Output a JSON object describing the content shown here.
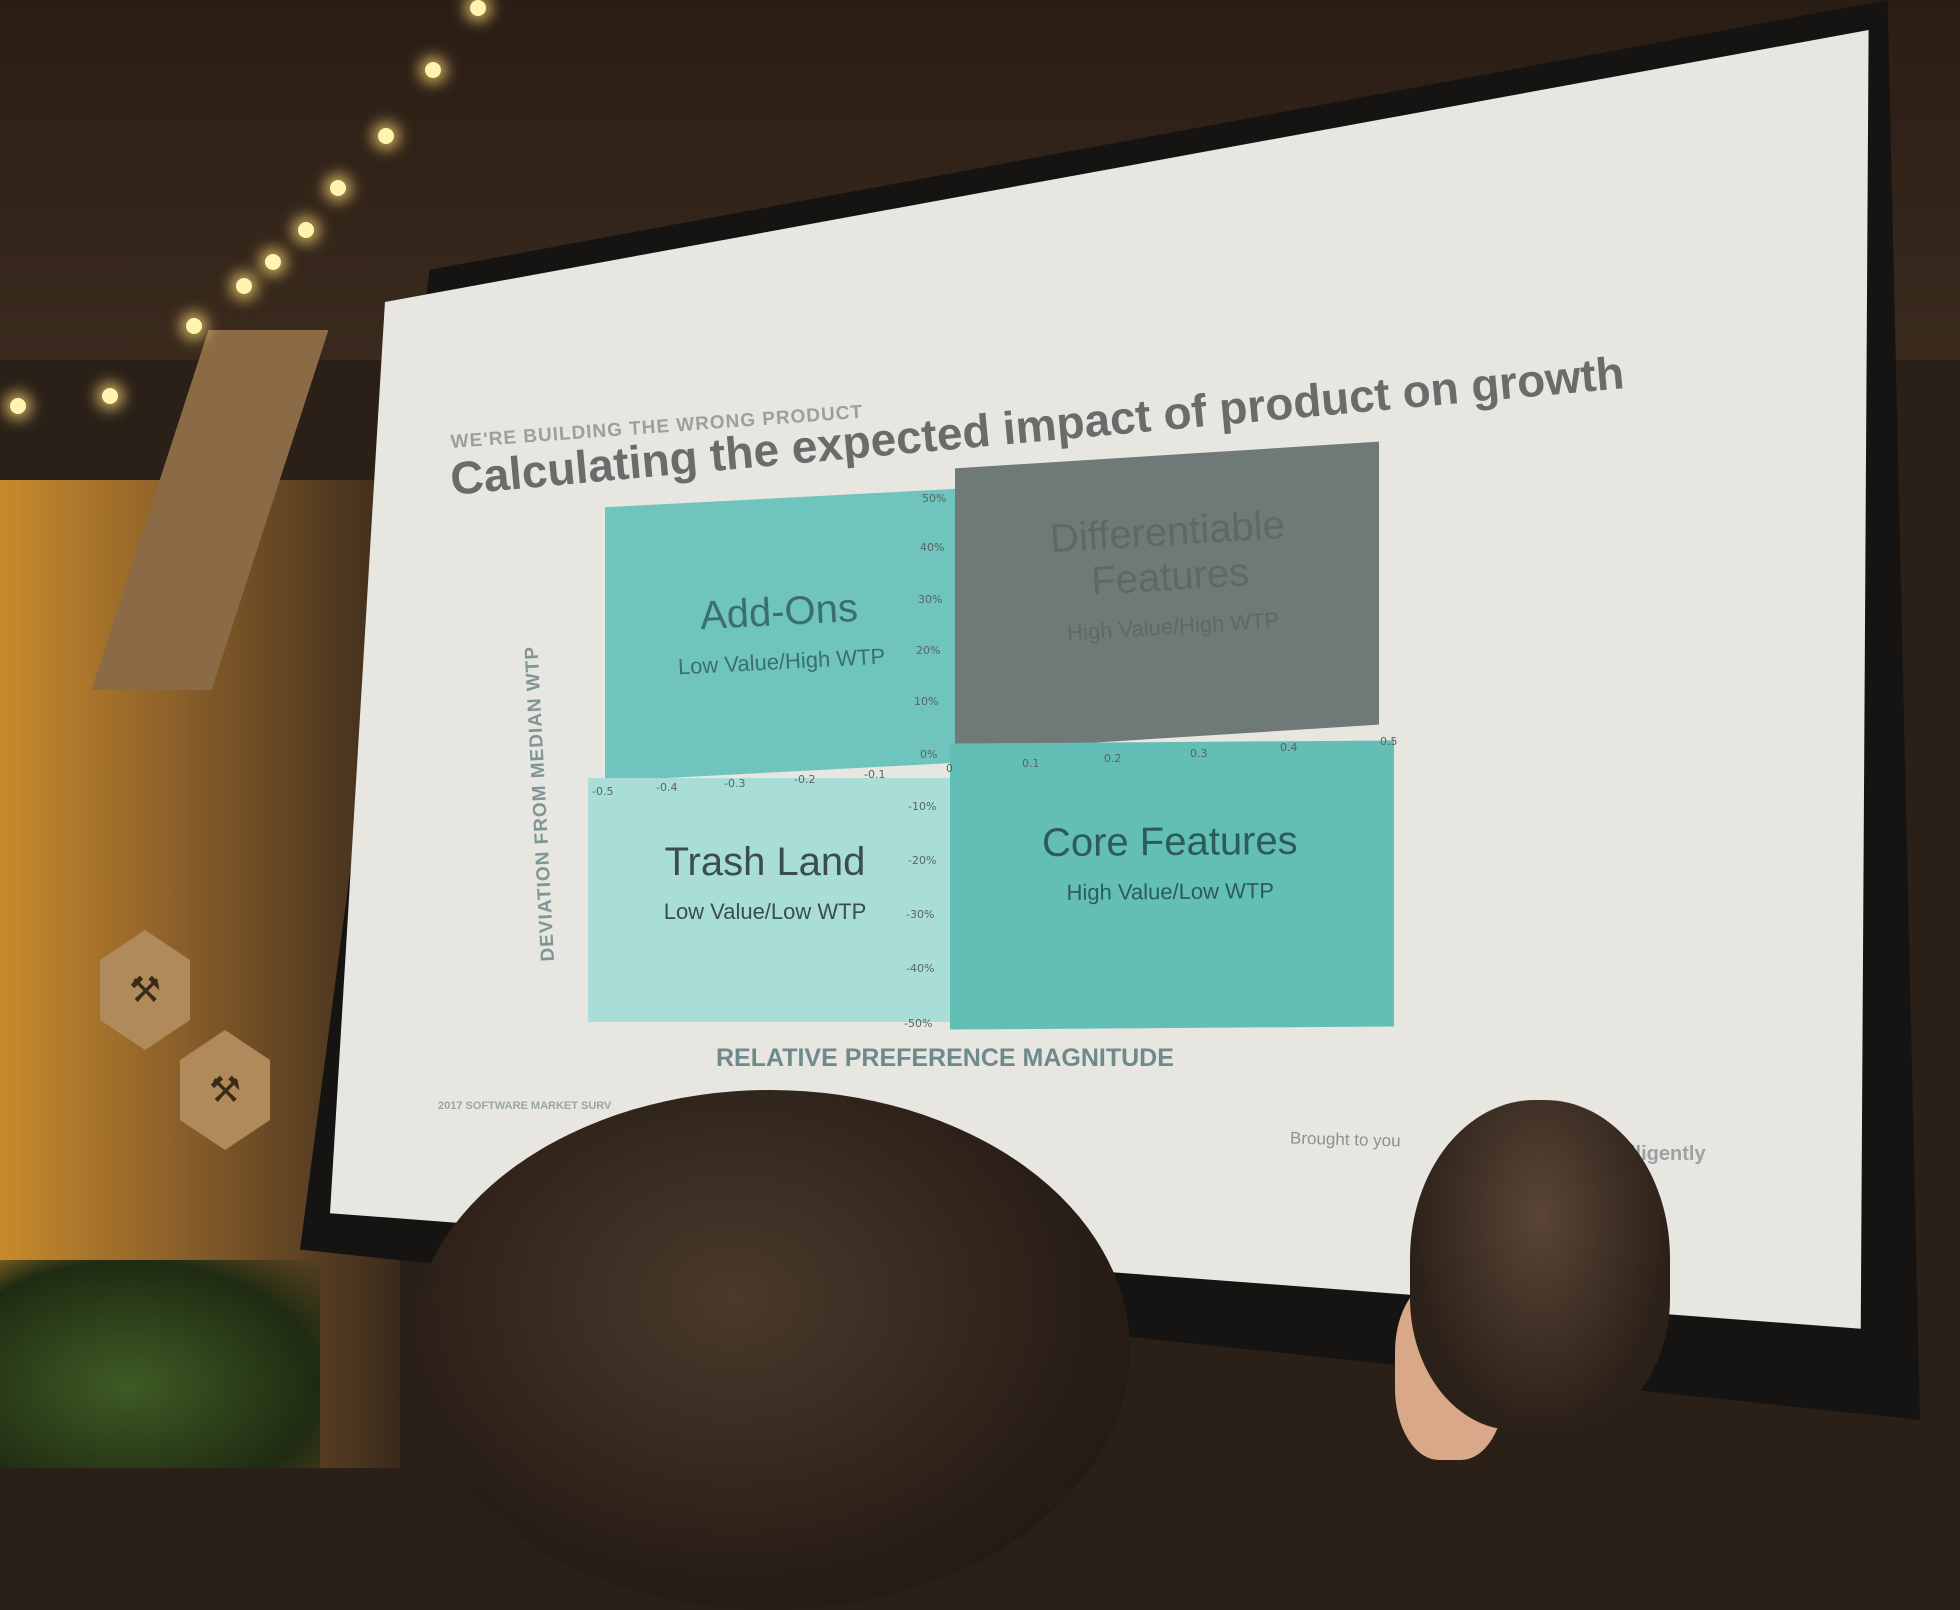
{
  "slide": {
    "kicker": "WE'RE BUILDING THE WRONG PRODUCT",
    "title": "Calculating the expected impact of product on growth",
    "y_axis_label": "DEVIATION FROM MEDIAN WTP",
    "x_axis_label": "RELATIVE PREFERENCE MAGNITUDE",
    "footer_left": "2017 SOFTWARE MARKET SURV",
    "footer_right": "Brought to you",
    "footer_brand": "lligently"
  },
  "quadrants": [
    {
      "name": "Add-Ons",
      "subtitle": "Low Value/High WTP",
      "color": "#6fc4bd"
    },
    {
      "name": "Differentiable Features",
      "subtitle": "High Value/High WTP",
      "color": "#6f7978"
    },
    {
      "name": "Trash Land",
      "subtitle": "Low Value/Low WTP",
      "color": "#a9ded8"
    },
    {
      "name": "Core Features",
      "subtitle": "High Value/Low WTP",
      "color": "#63bfb6"
    }
  ],
  "x_ticks": [
    "-0.5",
    "-0.4",
    "-0.3",
    "-0.2",
    "-0.1",
    "0",
    "0.1",
    "0.2",
    "0.3",
    "0.4",
    "0.5"
  ],
  "y_ticks": [
    "50%",
    "40%",
    "30%",
    "20%",
    "10%",
    "0%",
    "-10%",
    "-20%",
    "-30%",
    "-40%",
    "-50%"
  ],
  "icons": {
    "sign_icon": "hammer-wrench-icon"
  }
}
